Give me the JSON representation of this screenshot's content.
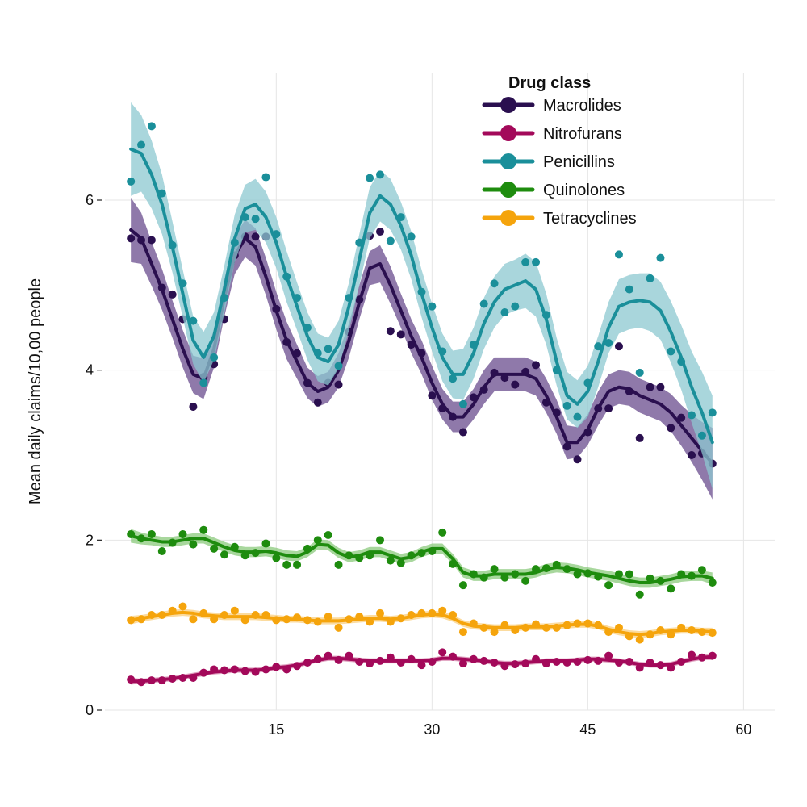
{
  "chart_data": {
    "type": "line",
    "title": "",
    "xlabel": "",
    "ylabel": "Mean daily claims/10,00 people",
    "xlim": [
      -1.5,
      63
    ],
    "ylim": [
      0,
      7.5
    ],
    "xticks": [
      15,
      30,
      45,
      60
    ],
    "yticks": [
      0,
      2,
      4,
      6
    ],
    "grid": true,
    "legend": {
      "title": "Drug class",
      "position": "top-right"
    },
    "series": [
      {
        "name": "Macrolides",
        "color": "#2a0f4f",
        "band_color": "#6a4c8e",
        "points_x": [
          1,
          2,
          3,
          4,
          5,
          6,
          7,
          8,
          9,
          10,
          11,
          12,
          13,
          14,
          15,
          16,
          17,
          18,
          19,
          20,
          21,
          22,
          23,
          24,
          25,
          26,
          27,
          28,
          29,
          30,
          31,
          32,
          33,
          34,
          35,
          36,
          37,
          38,
          39,
          40,
          41,
          42,
          43,
          44,
          45,
          46,
          47,
          48,
          49,
          50,
          51,
          52,
          53,
          54,
          55,
          56,
          57
        ],
        "points_y": [
          5.55,
          5.53,
          5.53,
          4.97,
          4.89,
          4.6,
          3.57,
          3.92,
          4.07,
          4.6,
          5.35,
          5.57,
          5.57,
          5.57,
          4.72,
          4.33,
          4.2,
          3.85,
          3.62,
          3.85,
          3.83,
          4.45,
          4.83,
          5.58,
          5.63,
          4.46,
          4.42,
          4.3,
          4.2,
          3.7,
          3.55,
          3.45,
          3.27,
          3.68,
          3.77,
          3.97,
          3.91,
          3.83,
          3.98,
          4.06,
          3.62,
          3.5,
          3.1,
          2.95,
          3.27,
          3.55,
          3.55,
          4.28,
          3.75,
          3.2,
          3.8,
          3.8,
          3.32,
          3.44,
          3.0,
          3.02,
          2.9
        ],
        "fit_y": [
          5.65,
          5.55,
          5.25,
          4.95,
          4.6,
          4.25,
          3.95,
          3.9,
          4.25,
          4.85,
          5.35,
          5.55,
          5.45,
          5.1,
          4.7,
          4.35,
          4.1,
          3.85,
          3.75,
          3.8,
          4.0,
          4.35,
          4.8,
          5.2,
          5.25,
          5.0,
          4.7,
          4.4,
          4.15,
          3.85,
          3.6,
          3.45,
          3.45,
          3.6,
          3.8,
          3.95,
          3.95,
          3.95,
          3.95,
          3.9,
          3.7,
          3.45,
          3.15,
          3.15,
          3.3,
          3.55,
          3.75,
          3.8,
          3.78,
          3.7,
          3.65,
          3.6,
          3.5,
          3.35,
          3.2,
          3.05,
          2.9
        ],
        "band_half": [
          0.38,
          0.3,
          0.26,
          0.24,
          0.22,
          0.22,
          0.22,
          0.24,
          0.22,
          0.22,
          0.22,
          0.22,
          0.22,
          0.22,
          0.22,
          0.22,
          0.2,
          0.18,
          0.18,
          0.18,
          0.2,
          0.2,
          0.2,
          0.2,
          0.22,
          0.22,
          0.2,
          0.2,
          0.2,
          0.2,
          0.18,
          0.18,
          0.18,
          0.18,
          0.2,
          0.2,
          0.2,
          0.2,
          0.2,
          0.2,
          0.2,
          0.2,
          0.2,
          0.18,
          0.18,
          0.2,
          0.2,
          0.2,
          0.2,
          0.2,
          0.2,
          0.2,
          0.22,
          0.24,
          0.28,
          0.34,
          0.42
        ]
      },
      {
        "name": "Nitrofurans",
        "color": "#a3095a",
        "band_color": "#d47fa8",
        "points_x": [
          1,
          2,
          3,
          4,
          5,
          6,
          7,
          8,
          9,
          10,
          11,
          12,
          13,
          14,
          15,
          16,
          17,
          18,
          19,
          20,
          21,
          22,
          23,
          24,
          25,
          26,
          27,
          28,
          29,
          30,
          31,
          32,
          33,
          34,
          35,
          36,
          37,
          38,
          39,
          40,
          41,
          42,
          43,
          44,
          45,
          46,
          47,
          48,
          49,
          50,
          51,
          52,
          53,
          54,
          55,
          56,
          57
        ],
        "points_y": [
          0.36,
          0.33,
          0.35,
          0.35,
          0.37,
          0.38,
          0.38,
          0.44,
          0.48,
          0.47,
          0.48,
          0.46,
          0.45,
          0.48,
          0.51,
          0.48,
          0.52,
          0.56,
          0.6,
          0.64,
          0.59,
          0.64,
          0.57,
          0.55,
          0.58,
          0.62,
          0.56,
          0.6,
          0.53,
          0.57,
          0.68,
          0.63,
          0.55,
          0.6,
          0.58,
          0.56,
          0.52,
          0.54,
          0.55,
          0.6,
          0.55,
          0.57,
          0.56,
          0.57,
          0.59,
          0.58,
          0.64,
          0.56,
          0.57,
          0.5,
          0.56,
          0.53,
          0.5,
          0.57,
          0.65,
          0.62,
          0.64
        ],
        "fit_y": [
          0.34,
          0.34,
          0.35,
          0.36,
          0.37,
          0.39,
          0.41,
          0.43,
          0.45,
          0.46,
          0.47,
          0.47,
          0.47,
          0.48,
          0.5,
          0.51,
          0.53,
          0.56,
          0.59,
          0.61,
          0.61,
          0.6,
          0.59,
          0.58,
          0.58,
          0.58,
          0.58,
          0.58,
          0.58,
          0.59,
          0.61,
          0.61,
          0.6,
          0.59,
          0.58,
          0.56,
          0.55,
          0.55,
          0.56,
          0.57,
          0.58,
          0.58,
          0.58,
          0.59,
          0.6,
          0.6,
          0.59,
          0.58,
          0.56,
          0.54,
          0.53,
          0.53,
          0.54,
          0.57,
          0.6,
          0.62,
          0.63
        ],
        "band_half": [
          0.04,
          0.03,
          0.03,
          0.03,
          0.03,
          0.03,
          0.03,
          0.03,
          0.03,
          0.03,
          0.03,
          0.03,
          0.03,
          0.03,
          0.03,
          0.03,
          0.03,
          0.03,
          0.03,
          0.03,
          0.03,
          0.03,
          0.03,
          0.03,
          0.03,
          0.03,
          0.03,
          0.03,
          0.03,
          0.03,
          0.03,
          0.03,
          0.03,
          0.03,
          0.03,
          0.03,
          0.03,
          0.03,
          0.03,
          0.03,
          0.03,
          0.03,
          0.03,
          0.03,
          0.03,
          0.03,
          0.03,
          0.03,
          0.03,
          0.03,
          0.03,
          0.03,
          0.03,
          0.03,
          0.03,
          0.03,
          0.04
        ]
      },
      {
        "name": "Penicillins",
        "color": "#1a8f9a",
        "band_color": "#8cc8d0",
        "points_x": [
          1,
          2,
          3,
          4,
          5,
          6,
          7,
          8,
          9,
          10,
          11,
          12,
          13,
          14,
          15,
          16,
          17,
          18,
          19,
          20,
          21,
          22,
          23,
          24,
          25,
          26,
          27,
          28,
          29,
          30,
          31,
          32,
          33,
          34,
          35,
          36,
          37,
          38,
          39,
          40,
          41,
          42,
          43,
          44,
          45,
          46,
          47,
          48,
          49,
          50,
          51,
          52,
          53,
          54,
          55,
          56,
          57
        ],
        "points_y": [
          6.22,
          6.65,
          6.87,
          6.08,
          5.47,
          5.02,
          4.58,
          3.85,
          4.15,
          4.85,
          5.5,
          5.8,
          5.78,
          6.27,
          5.6,
          5.1,
          4.85,
          4.5,
          4.2,
          4.25,
          4.05,
          4.85,
          5.5,
          6.26,
          6.3,
          5.52,
          5.8,
          5.57,
          4.92,
          4.75,
          4.22,
          3.9,
          3.6,
          4.3,
          4.78,
          5.02,
          4.68,
          4.75,
          5.27,
          5.27,
          4.65,
          4.0,
          3.58,
          3.45,
          3.85,
          4.28,
          4.32,
          5.36,
          4.95,
          3.97,
          5.08,
          5.32,
          4.22,
          4.1,
          3.47,
          3.23,
          3.5
        ],
        "fit_y": [
          6.6,
          6.55,
          6.3,
          5.95,
          5.45,
          4.9,
          4.35,
          4.15,
          4.4,
          4.95,
          5.55,
          5.9,
          5.95,
          5.8,
          5.5,
          5.1,
          4.75,
          4.4,
          4.15,
          4.1,
          4.3,
          4.75,
          5.3,
          5.85,
          6.05,
          5.95,
          5.7,
          5.35,
          4.9,
          4.5,
          4.15,
          3.95,
          3.95,
          4.2,
          4.55,
          4.8,
          4.95,
          5.0,
          5.05,
          4.95,
          4.6,
          4.1,
          3.7,
          3.6,
          3.75,
          4.1,
          4.5,
          4.75,
          4.8,
          4.82,
          4.8,
          4.7,
          4.45,
          4.15,
          3.8,
          3.5,
          3.15
        ],
        "band_half": [
          0.55,
          0.45,
          0.4,
          0.35,
          0.3,
          0.28,
          0.28,
          0.3,
          0.28,
          0.28,
          0.28,
          0.28,
          0.3,
          0.3,
          0.3,
          0.3,
          0.28,
          0.28,
          0.28,
          0.28,
          0.28,
          0.28,
          0.3,
          0.3,
          0.3,
          0.3,
          0.28,
          0.28,
          0.28,
          0.28,
          0.28,
          0.28,
          0.3,
          0.3,
          0.3,
          0.3,
          0.3,
          0.3,
          0.32,
          0.32,
          0.3,
          0.28,
          0.28,
          0.28,
          0.3,
          0.3,
          0.3,
          0.32,
          0.32,
          0.32,
          0.34,
          0.34,
          0.36,
          0.38,
          0.42,
          0.48,
          0.55
        ]
      },
      {
        "name": "Quinolones",
        "color": "#1e8c0e",
        "band_color": "#8bc97c",
        "points_x": [
          1,
          2,
          3,
          4,
          5,
          6,
          7,
          8,
          9,
          10,
          11,
          12,
          13,
          14,
          15,
          16,
          17,
          18,
          19,
          20,
          21,
          22,
          23,
          24,
          25,
          26,
          27,
          28,
          29,
          30,
          31,
          32,
          33,
          34,
          35,
          36,
          37,
          38,
          39,
          40,
          41,
          42,
          43,
          44,
          45,
          46,
          47,
          48,
          49,
          50,
          51,
          52,
          53,
          54,
          55,
          56,
          57
        ],
        "points_y": [
          2.07,
          2.02,
          2.07,
          1.87,
          1.97,
          2.07,
          1.95,
          2.12,
          1.9,
          1.83,
          1.92,
          1.82,
          1.85,
          1.96,
          1.79,
          1.71,
          1.71,
          1.9,
          2.0,
          2.06,
          1.71,
          1.82,
          1.79,
          1.82,
          2.0,
          1.76,
          1.73,
          1.82,
          1.85,
          1.87,
          2.09,
          1.72,
          1.47,
          1.6,
          1.56,
          1.66,
          1.56,
          1.6,
          1.52,
          1.66,
          1.67,
          1.71,
          1.66,
          1.6,
          1.61,
          1.57,
          1.47,
          1.6,
          1.6,
          1.36,
          1.55,
          1.52,
          1.43,
          1.6,
          1.58,
          1.65,
          1.5
        ],
        "fit_y": [
          2.05,
          2.02,
          2.0,
          1.98,
          1.98,
          2.0,
          2.02,
          2.02,
          1.97,
          1.92,
          1.88,
          1.86,
          1.86,
          1.87,
          1.85,
          1.82,
          1.81,
          1.86,
          1.95,
          1.94,
          1.85,
          1.8,
          1.82,
          1.86,
          1.86,
          1.82,
          1.78,
          1.8,
          1.86,
          1.9,
          1.9,
          1.78,
          1.62,
          1.58,
          1.58,
          1.6,
          1.6,
          1.6,
          1.6,
          1.62,
          1.66,
          1.68,
          1.67,
          1.65,
          1.62,
          1.6,
          1.58,
          1.55,
          1.52,
          1.5,
          1.5,
          1.52,
          1.54,
          1.57,
          1.58,
          1.58,
          1.55
        ],
        "band_half": [
          0.08,
          0.07,
          0.06,
          0.06,
          0.06,
          0.06,
          0.06,
          0.06,
          0.06,
          0.06,
          0.06,
          0.06,
          0.06,
          0.06,
          0.06,
          0.06,
          0.06,
          0.06,
          0.06,
          0.06,
          0.06,
          0.06,
          0.06,
          0.06,
          0.06,
          0.06,
          0.06,
          0.06,
          0.06,
          0.06,
          0.06,
          0.06,
          0.06,
          0.06,
          0.06,
          0.06,
          0.06,
          0.06,
          0.06,
          0.06,
          0.06,
          0.06,
          0.06,
          0.06,
          0.06,
          0.06,
          0.06,
          0.06,
          0.06,
          0.06,
          0.06,
          0.06,
          0.06,
          0.06,
          0.06,
          0.06,
          0.07
        ]
      },
      {
        "name": "Tetracyclines",
        "color": "#f5a40c",
        "band_color": "#f9cf7f",
        "points_x": [
          1,
          2,
          3,
          4,
          5,
          6,
          7,
          8,
          9,
          10,
          11,
          12,
          13,
          14,
          15,
          16,
          17,
          18,
          19,
          20,
          21,
          22,
          23,
          24,
          25,
          26,
          27,
          28,
          29,
          30,
          31,
          32,
          33,
          34,
          35,
          36,
          37,
          38,
          39,
          40,
          41,
          42,
          43,
          44,
          45,
          46,
          47,
          48,
          49,
          50,
          51,
          52,
          53,
          54,
          55,
          56,
          57
        ],
        "points_y": [
          1.06,
          1.07,
          1.12,
          1.12,
          1.17,
          1.22,
          1.07,
          1.14,
          1.07,
          1.12,
          1.17,
          1.06,
          1.12,
          1.12,
          1.06,
          1.07,
          1.09,
          1.06,
          1.04,
          1.1,
          0.97,
          1.07,
          1.1,
          1.04,
          1.14,
          1.04,
          1.08,
          1.12,
          1.14,
          1.14,
          1.17,
          1.12,
          0.92,
          1.02,
          0.97,
          0.92,
          1.0,
          0.94,
          0.97,
          1.01,
          0.97,
          0.97,
          1.0,
          1.02,
          1.02,
          1.0,
          0.92,
          0.97,
          0.87,
          0.83,
          0.89,
          0.94,
          0.89,
          0.97,
          0.94,
          0.92,
          0.91
        ],
        "fit_y": [
          1.06,
          1.08,
          1.1,
          1.12,
          1.14,
          1.15,
          1.14,
          1.12,
          1.11,
          1.1,
          1.1,
          1.1,
          1.1,
          1.09,
          1.08,
          1.07,
          1.07,
          1.06,
          1.05,
          1.05,
          1.05,
          1.06,
          1.07,
          1.08,
          1.08,
          1.07,
          1.08,
          1.1,
          1.12,
          1.13,
          1.12,
          1.08,
          1.02,
          0.99,
          0.98,
          0.97,
          0.97,
          0.97,
          0.98,
          0.98,
          0.98,
          0.99,
          1.0,
          1.01,
          1.01,
          0.99,
          0.95,
          0.92,
          0.9,
          0.89,
          0.9,
          0.92,
          0.93,
          0.94,
          0.94,
          0.93,
          0.92
        ],
        "band_half": [
          0.05,
          0.04,
          0.04,
          0.04,
          0.04,
          0.04,
          0.04,
          0.04,
          0.04,
          0.04,
          0.04,
          0.04,
          0.04,
          0.04,
          0.04,
          0.04,
          0.04,
          0.04,
          0.04,
          0.04,
          0.04,
          0.04,
          0.04,
          0.04,
          0.04,
          0.04,
          0.04,
          0.04,
          0.04,
          0.04,
          0.04,
          0.04,
          0.04,
          0.04,
          0.04,
          0.04,
          0.04,
          0.04,
          0.04,
          0.04,
          0.04,
          0.04,
          0.04,
          0.04,
          0.04,
          0.04,
          0.04,
          0.04,
          0.04,
          0.04,
          0.04,
          0.04,
          0.04,
          0.04,
          0.04,
          0.04,
          0.05
        ]
      }
    ]
  }
}
